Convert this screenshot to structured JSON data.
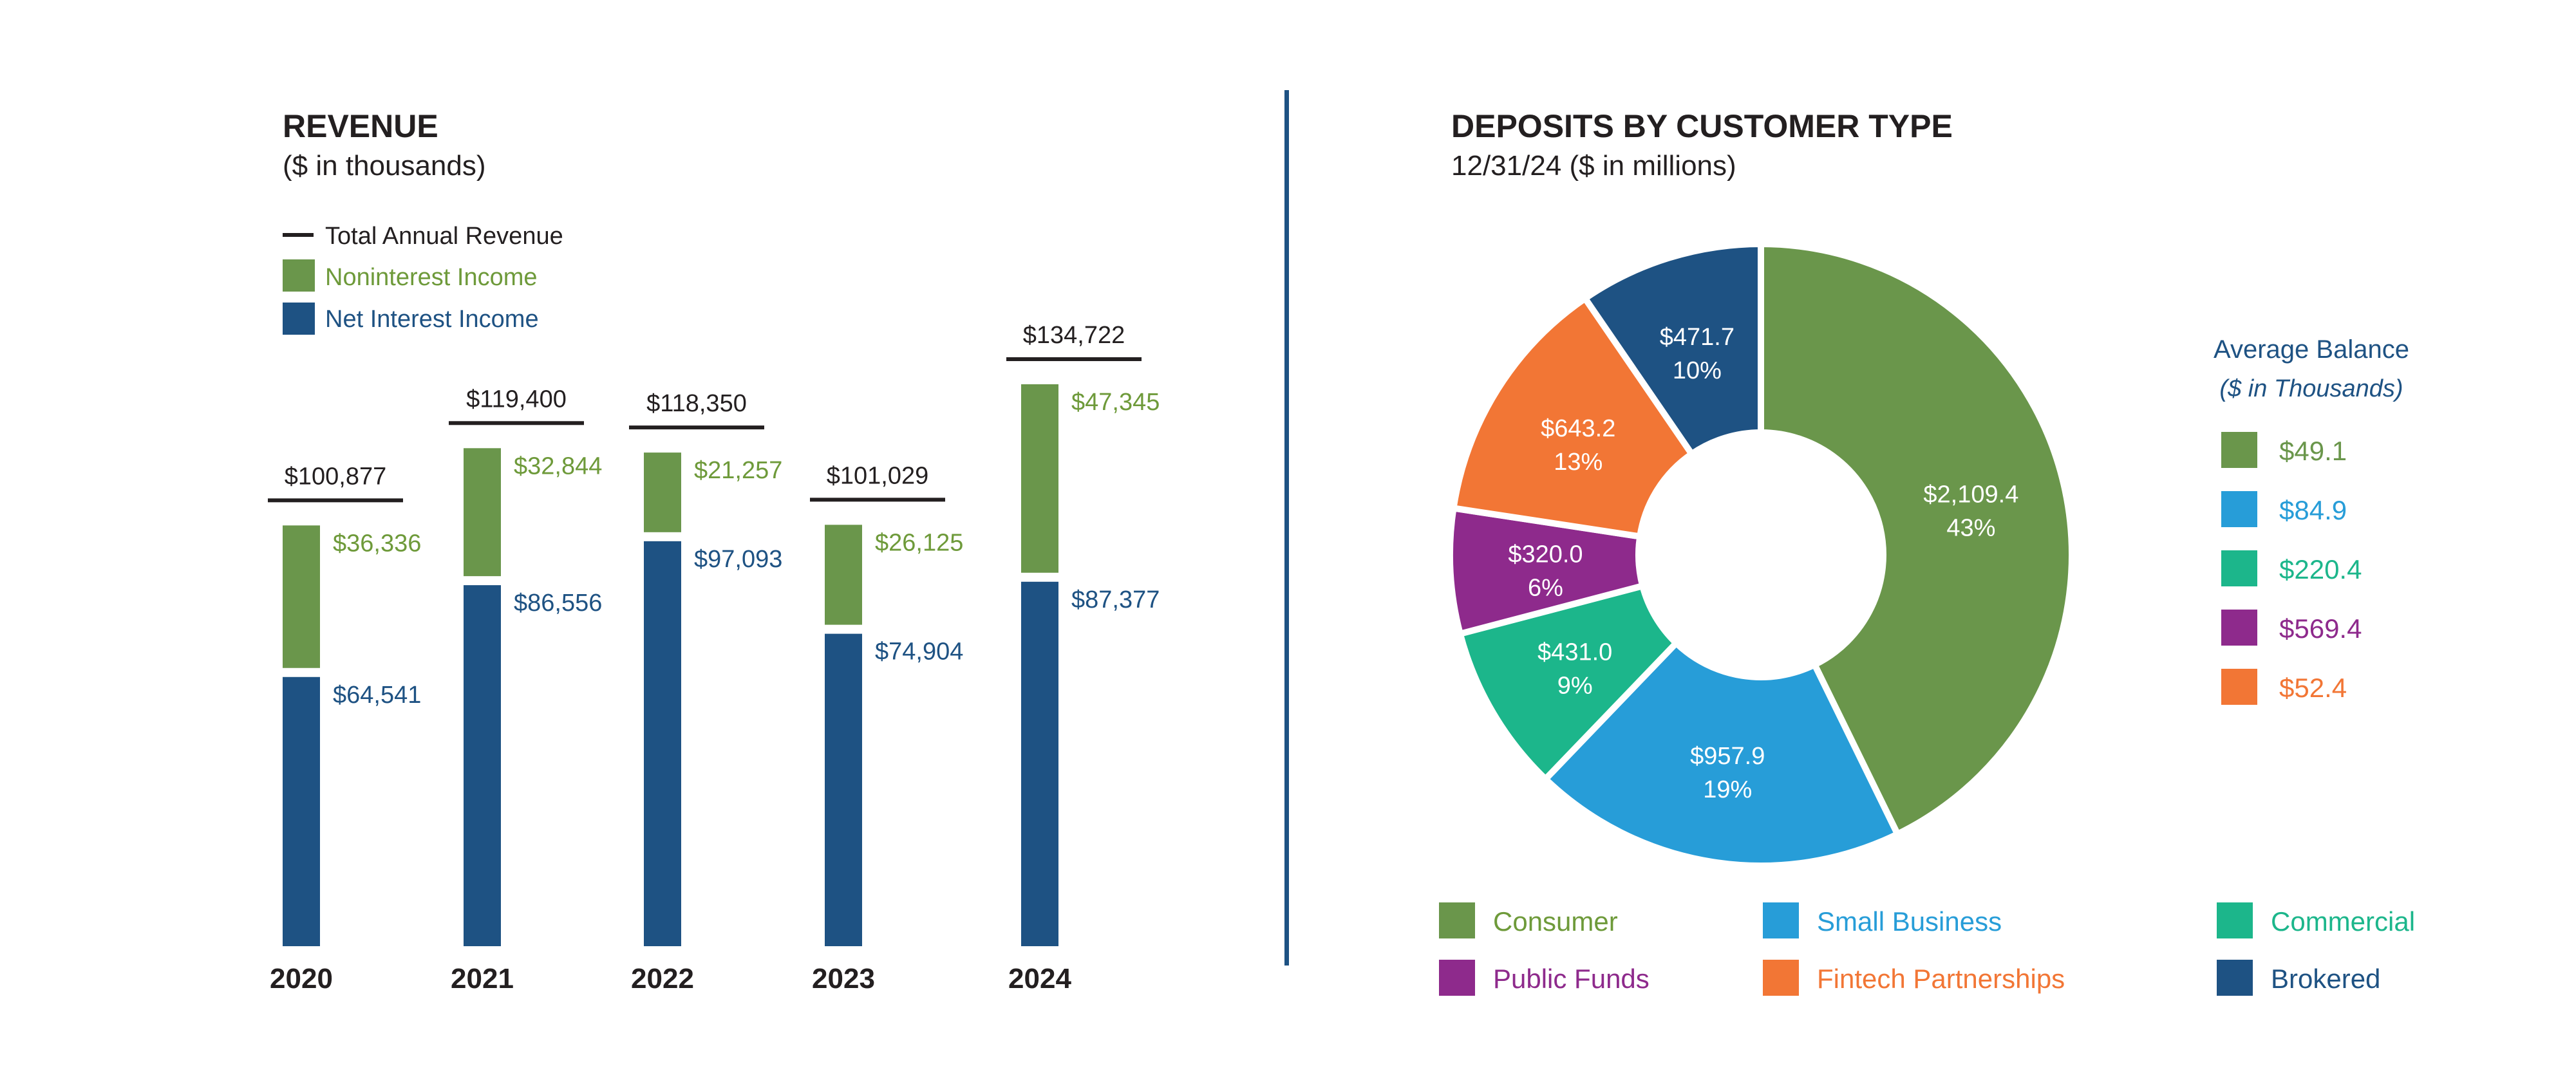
{
  "colors": {
    "text": "#231f20",
    "noninterest": "#6a964b",
    "net_interest": "#1e5283",
    "divider": "#1e5283"
  },
  "chart_data": [
    {
      "type": "bar",
      "stacked": true,
      "title": "REVENUE",
      "subtitle": "($ in thousands)",
      "categories": [
        "2020",
        "2021",
        "2022",
        "2023",
        "2024"
      ],
      "totals_label": "Total Annual Revenue",
      "totals": [
        "$100,877",
        "$119,400",
        "$118,350",
        "$101,029",
        "$134,722"
      ],
      "total_values": [
        100877,
        119400,
        118350,
        101029,
        134722
      ],
      "series": [
        {
          "name": "Net Interest Income",
          "color": "#1e5283",
          "values": [
            64541,
            86556,
            97093,
            74904,
            87377
          ],
          "labels": [
            "$64,541",
            "$86,556",
            "$97,093",
            "$74,904",
            "$87,377"
          ]
        },
        {
          "name": "Noninterest Income",
          "color": "#6a964b",
          "values": [
            36336,
            32844,
            21257,
            26125,
            47345
          ],
          "labels": [
            "$36,336",
            "$32,844",
            "$21,257",
            "$26,125",
            "$47,345"
          ]
        }
      ],
      "legend": [
        "Total Annual Revenue",
        "Noninterest Income",
        "Net Interest Income"
      ],
      "legend_placement": "top-left",
      "grid": false
    },
    {
      "type": "pie",
      "donut": true,
      "title": "DEPOSITS BY CUSTOMER TYPE",
      "subtitle": "12/31/24 ($ in millions)",
      "slices": [
        {
          "name": "Consumer",
          "value": 2109.4,
          "label": "$2,109.4",
          "percent": "43%",
          "color": "#6a964b"
        },
        {
          "name": "Small Business",
          "value": 957.9,
          "label": "$957.9",
          "percent": "19%",
          "color": "#279dd8"
        },
        {
          "name": "Commercial",
          "value": 431.0,
          "label": "$431.0",
          "percent": "9%",
          "color": "#1cb68b"
        },
        {
          "name": "Public Funds",
          "value": 320.0,
          "label": "$320.0",
          "percent": "6%",
          "color": "#8e2a8c"
        },
        {
          "name": "Fintech Partnerships",
          "value": 643.2,
          "label": "$643.2",
          "percent": "13%",
          "color": "#f27635"
        },
        {
          "name": "Brokered",
          "value": 471.7,
          "label": "$471.7",
          "percent": "10%",
          "color": "#1e5283"
        }
      ],
      "legend_placement": "bottom",
      "average_balance": {
        "title": "Average Balance",
        "subtitle": "($ in Thousands)",
        "items": [
          {
            "label": "$49.1",
            "color": "#6a964b"
          },
          {
            "label": "$84.9",
            "color": "#279dd8"
          },
          {
            "label": "$220.4",
            "color": "#1cb68b"
          },
          {
            "label": "$569.4",
            "color": "#8e2a8c"
          },
          {
            "label": "$52.4",
            "color": "#f27635"
          }
        ]
      }
    }
  ]
}
